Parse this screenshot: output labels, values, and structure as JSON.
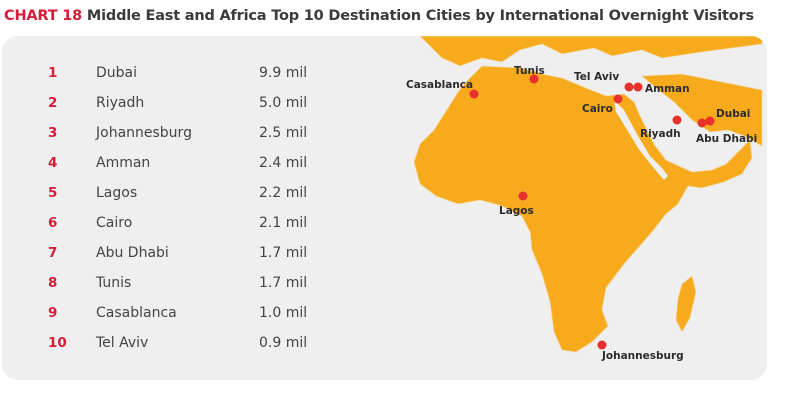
{
  "title": {
    "prefix": "CHART 18",
    "text": "Middle East and Africa Top 10 Destination Cities by International Overnight Visitors"
  },
  "colors": {
    "accent": "#d51d3a",
    "land": "#f7ab1c",
    "panel": "#efefef",
    "marker": "#e8312d"
  },
  "chart_data": {
    "type": "table",
    "title": "Middle East and Africa Top 10 Destination Cities by International Overnight Visitors",
    "rows": [
      {
        "rank": "1",
        "city": "Dubai",
        "value": 9.9,
        "value_label": "9.9 mil"
      },
      {
        "rank": "2",
        "city": "Riyadh",
        "value": 5.0,
        "value_label": "5.0 mil"
      },
      {
        "rank": "3",
        "city": "Johannesburg",
        "value": 2.5,
        "value_label": "2.5 mil"
      },
      {
        "rank": "4",
        "city": "Amman",
        "value": 2.4,
        "value_label": "2.4 mil"
      },
      {
        "rank": "5",
        "city": "Lagos",
        "value": 2.2,
        "value_label": "2.2 mil"
      },
      {
        "rank": "6",
        "city": "Cairo",
        "value": 2.1,
        "value_label": "2.1 mil"
      },
      {
        "rank": "7",
        "city": "Abu Dhabi",
        "value": 1.7,
        "value_label": "1.7 mil"
      },
      {
        "rank": "8",
        "city": "Tunis",
        "value": 1.7,
        "value_label": "1.7 mil"
      },
      {
        "rank": "9",
        "city": "Casablanca",
        "value": 1.0,
        "value_label": "1.0 mil"
      },
      {
        "rank": "10",
        "city": "Tel Aviv",
        "value": 0.9,
        "value_label": "0.9 mil"
      }
    ],
    "map_markers": [
      "Casablanca",
      "Tunis",
      "Tel Aviv",
      "Amman",
      "Cairo",
      "Riyadh",
      "Dubai",
      "Abu Dhabi",
      "Lagos",
      "Johannesburg"
    ]
  }
}
